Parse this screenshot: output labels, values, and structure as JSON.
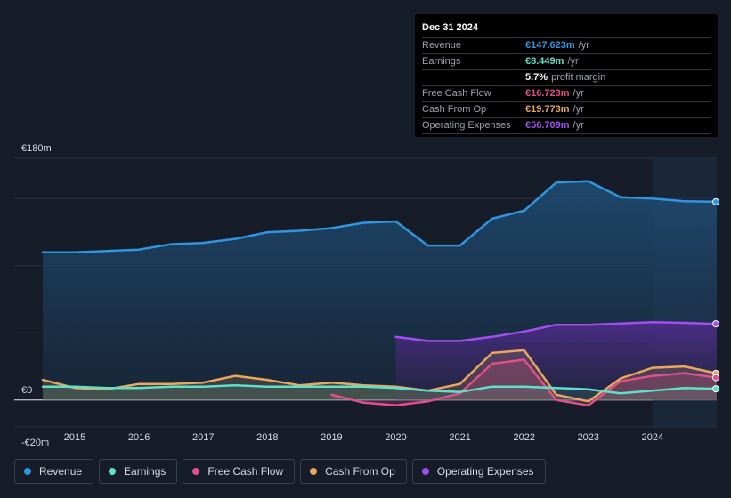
{
  "tooltip": {
    "date": "Dec 31 2024",
    "rows": [
      {
        "label": "Revenue",
        "value": "€147.623m",
        "unit": "/yr",
        "color": "#2f96e0"
      },
      {
        "label": "Earnings",
        "value": "€8.449m",
        "unit": "/yr",
        "color": "#5fe0c8"
      },
      {
        "label": "",
        "value": "5.7%",
        "unit": "profit margin",
        "color": "#ffffff"
      },
      {
        "label": "Free Cash Flow",
        "value": "€16.723m",
        "unit": "/yr",
        "color": "#e0508a"
      },
      {
        "label": "Cash From Op",
        "value": "€19.773m",
        "unit": "/yr",
        "color": "#e8a860"
      },
      {
        "label": "Operating Expenses",
        "value": "€56.709m",
        "unit": "/yr",
        "color": "#a050f0"
      }
    ]
  },
  "legend": [
    {
      "label": "Revenue",
      "color": "#2f96e0"
    },
    {
      "label": "Earnings",
      "color": "#5fe0c8"
    },
    {
      "label": "Free Cash Flow",
      "color": "#e0508a"
    },
    {
      "label": "Cash From Op",
      "color": "#e8a860"
    },
    {
      "label": "Operating Expenses",
      "color": "#a050f0"
    }
  ],
  "chart_data": {
    "type": "area",
    "y_tick_labels": [
      "€180m",
      "€0",
      "-€20m"
    ],
    "ylim": [
      -20,
      180
    ],
    "xlim": [
      2014.5,
      2025.0
    ],
    "x_ticks": [
      "2015",
      "2016",
      "2017",
      "2018",
      "2019",
      "2020",
      "2021",
      "2022",
      "2023",
      "2024"
    ],
    "highlight_from": 2024.0,
    "series": [
      {
        "name": "Revenue",
        "color": "#2f96e0",
        "x": [
          2014.5,
          2015.0,
          2015.5,
          2016.0,
          2016.5,
          2017.0,
          2017.5,
          2018.0,
          2018.5,
          2019.0,
          2019.5,
          2020.0,
          2020.5,
          2021.0,
          2021.5,
          2022.0,
          2022.5,
          2023.0,
          2023.5,
          2024.0,
          2024.5,
          2025.0
        ],
        "y": [
          110,
          110,
          111,
          112,
          116,
          117,
          120,
          125,
          126,
          128,
          132,
          133,
          115,
          115,
          135,
          141,
          162,
          163,
          151,
          150,
          148,
          147.6
        ]
      },
      {
        "name": "Operating Expenses",
        "color": "#a050f0",
        "x": [
          2020.0,
          2020.5,
          2021.0,
          2021.5,
          2022.0,
          2022.5,
          2023.0,
          2023.5,
          2024.0,
          2024.5,
          2025.0
        ],
        "y": [
          47,
          44,
          44,
          47,
          51,
          56,
          56,
          57,
          58,
          57.5,
          56.7
        ]
      },
      {
        "name": "Cash From Op",
        "color": "#e8a860",
        "x": [
          2014.5,
          2015.0,
          2015.5,
          2016.0,
          2016.5,
          2017.0,
          2017.5,
          2018.0,
          2018.5,
          2019.0,
          2019.5,
          2020.0,
          2020.5,
          2021.0,
          2021.5,
          2022.0,
          2022.5,
          2023.0,
          2023.5,
          2024.0,
          2024.5,
          2025.0
        ],
        "y": [
          15,
          9,
          8,
          12,
          12,
          13,
          18,
          15,
          11,
          13,
          11,
          10,
          7,
          12,
          35,
          37,
          4,
          -1,
          16,
          24,
          25,
          19.8
        ]
      },
      {
        "name": "Free Cash Flow",
        "color": "#e0508a",
        "x": [
          2019.0,
          2019.5,
          2020.0,
          2020.5,
          2021.0,
          2021.5,
          2022.0,
          2022.5,
          2023.0,
          2023.5,
          2024.0,
          2024.5,
          2025.0
        ],
        "y": [
          4,
          -2,
          -4,
          -1,
          5,
          27,
          30,
          0,
          -4,
          14,
          18,
          20,
          16.7
        ]
      },
      {
        "name": "Earnings",
        "color": "#5fe0c8",
        "x": [
          2014.5,
          2015.0,
          2015.5,
          2016.0,
          2016.5,
          2017.0,
          2017.5,
          2018.0,
          2018.5,
          2019.0,
          2019.5,
          2020.0,
          2020.5,
          2021.0,
          2021.5,
          2022.0,
          2022.5,
          2023.0,
          2023.5,
          2024.0,
          2024.5,
          2025.0
        ],
        "y": [
          10,
          10,
          9,
          9,
          10,
          10,
          11,
          10,
          10,
          10,
          10,
          9,
          7,
          6,
          10,
          10,
          9,
          8,
          5,
          7,
          9,
          8.4
        ]
      }
    ]
  }
}
